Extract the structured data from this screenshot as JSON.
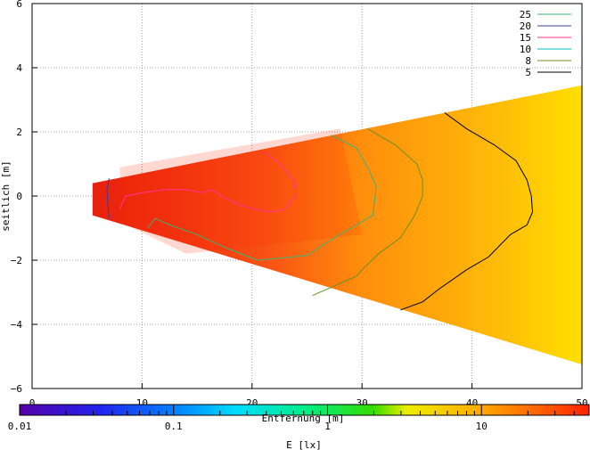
{
  "chart_data": {
    "type": "heatmap",
    "title": "",
    "xlabel": "Entfernung [m]",
    "ylabel": "seitlich [m]",
    "xlim": [
      0,
      50
    ],
    "ylim": [
      -6,
      6
    ],
    "xticks": [
      "0",
      "10",
      "20",
      "30",
      "40",
      "50"
    ],
    "yticks": [
      "6",
      "4",
      "2",
      "0",
      "−2",
      "−4",
      "−6"
    ],
    "grid": true,
    "legend": "top-right",
    "contours": [
      {
        "name": "25",
        "color": "#3cb371",
        "points": [
          [
            27.2,
            1.9
          ],
          [
            29.5,
            1.5
          ],
          [
            30.5,
            0.9
          ],
          [
            31.3,
            0.3
          ],
          [
            31.0,
            -0.6
          ],
          [
            28.5,
            -1.1
          ],
          [
            27.0,
            -1.4
          ],
          [
            25.0,
            -1.85
          ],
          [
            22.0,
            -1.95
          ],
          [
            20.5,
            -2.0
          ],
          [
            17.5,
            -1.6
          ],
          [
            15.0,
            -1.2
          ],
          [
            12.5,
            -0.9
          ],
          [
            11.2,
            -0.7
          ],
          [
            10.5,
            -1.0
          ]
        ]
      },
      {
        "name": "20",
        "color": "#3b3b9a",
        "points": [
          [
            7.0,
            0.55
          ],
          [
            6.8,
            0.2
          ],
          [
            6.9,
            -0.3
          ],
          [
            7.0,
            -0.7
          ]
        ]
      },
      {
        "name": "15",
        "color": "#ff3399",
        "points": [
          [
            21.0,
            1.4
          ],
          [
            22.5,
            1.0
          ],
          [
            23.8,
            0.5
          ],
          [
            24.0,
            0.0
          ],
          [
            22.8,
            -0.45
          ],
          [
            21.5,
            -0.5
          ],
          [
            19.0,
            -0.3
          ],
          [
            17.5,
            -0.05
          ],
          [
            16.3,
            0.2
          ],
          [
            15.5,
            0.1
          ],
          [
            14.0,
            0.2
          ],
          [
            12.0,
            0.2
          ],
          [
            10.0,
            0.1
          ],
          [
            8.5,
            0.0
          ],
          [
            8.0,
            -0.4
          ]
        ]
      },
      {
        "name": "10",
        "color": "#00bfbf",
        "points": []
      },
      {
        "name": "8",
        "color": "#6b8e23",
        "points": [
          [
            30.5,
            2.1
          ],
          [
            33.0,
            1.6
          ],
          [
            35.0,
            1.0
          ],
          [
            35.5,
            0.5
          ],
          [
            35.5,
            0.0
          ],
          [
            34.8,
            -0.6
          ],
          [
            33.5,
            -1.3
          ],
          [
            31.5,
            -1.8
          ],
          [
            30.0,
            -2.3
          ],
          [
            29.5,
            -2.5
          ],
          [
            27.5,
            -2.8
          ],
          [
            25.5,
            -3.1
          ]
        ]
      },
      {
        "name": "5",
        "color": "#000000",
        "points": [
          [
            37.5,
            2.6
          ],
          [
            39.5,
            2.1
          ],
          [
            42.0,
            1.6
          ],
          [
            44.0,
            1.1
          ],
          [
            45.0,
            0.5
          ],
          [
            45.4,
            0.0
          ],
          [
            45.5,
            -0.5
          ],
          [
            45.0,
            -0.9
          ],
          [
            43.5,
            -1.2
          ],
          [
            41.5,
            -1.9
          ],
          [
            39.5,
            -2.3
          ],
          [
            37.0,
            -2.9
          ],
          [
            35.5,
            -3.3
          ],
          [
            33.5,
            -3.55
          ]
        ]
      }
    ],
    "colorbar": {
      "label": "E [lx]",
      "scale": "log",
      "range": [
        0.01,
        50
      ],
      "ticks": [
        "0.01",
        "0.1",
        "1",
        "10"
      ]
    }
  }
}
